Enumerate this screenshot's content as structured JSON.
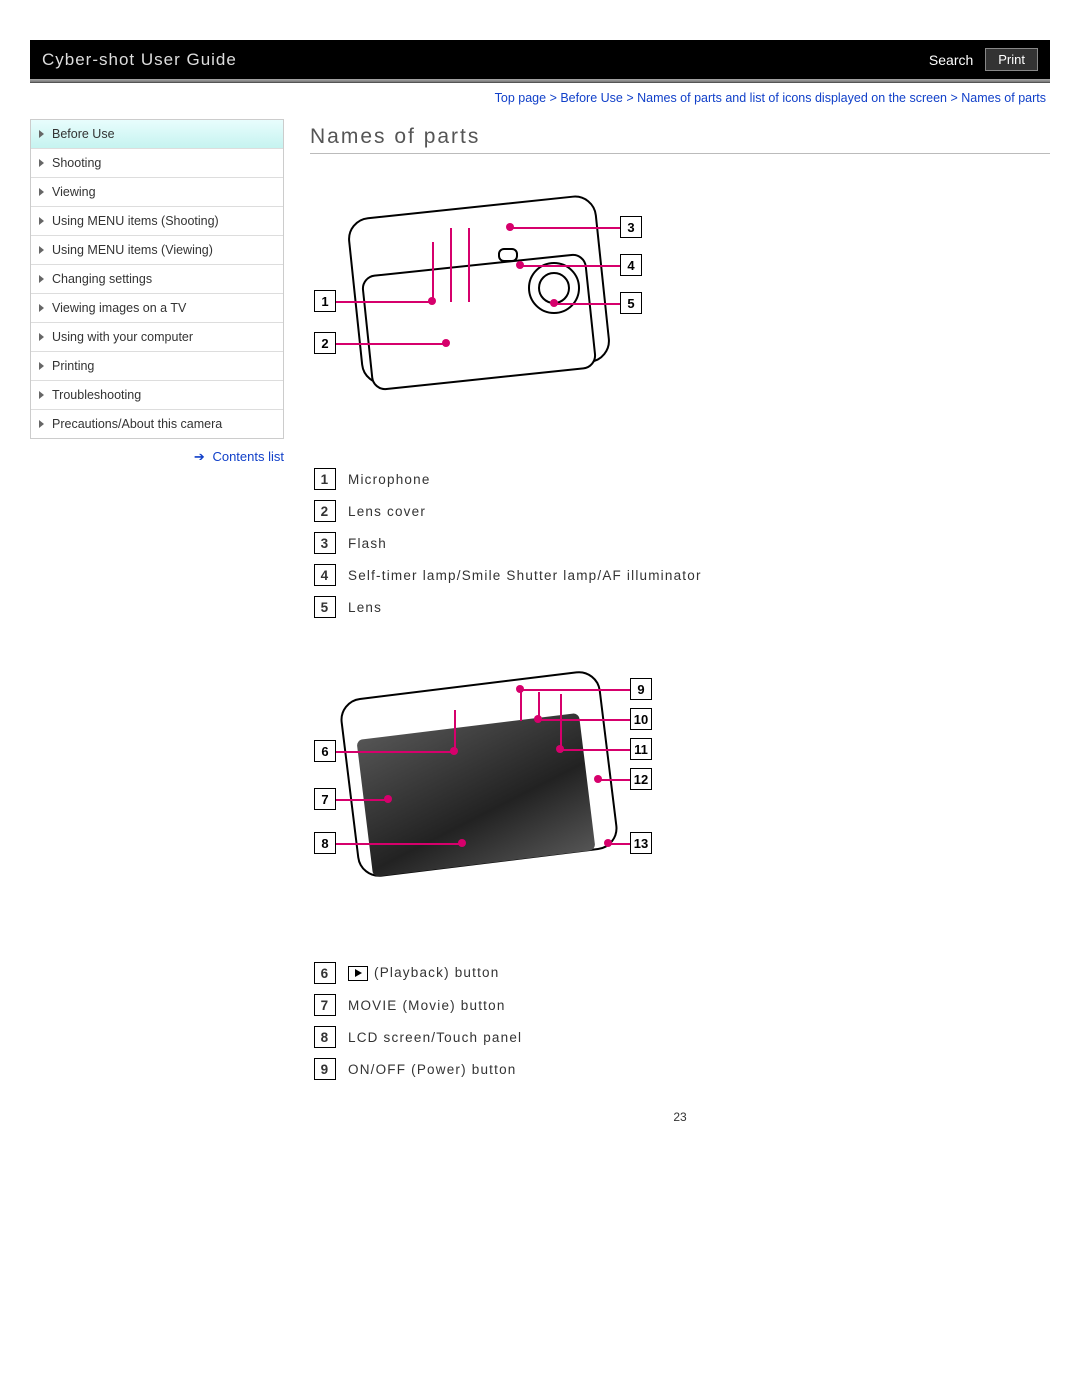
{
  "header": {
    "title": "Cyber-shot User Guide",
    "search_label": "Search",
    "print_label": "Print"
  },
  "breadcrumb": "Top page > Before Use > Names of parts and list of icons displayed on the screen > Names of parts",
  "sidebar": {
    "items": [
      {
        "label": "Before Use",
        "active": true
      },
      {
        "label": "Shooting",
        "active": false
      },
      {
        "label": "Viewing",
        "active": false
      },
      {
        "label": "Using MENU items (Shooting)",
        "active": false
      },
      {
        "label": "Using MENU items (Viewing)",
        "active": false
      },
      {
        "label": "Changing settings",
        "active": false
      },
      {
        "label": "Viewing images on a TV",
        "active": false
      },
      {
        "label": "Using with your computer",
        "active": false
      },
      {
        "label": "Printing",
        "active": false
      },
      {
        "label": "Troubleshooting",
        "active": false
      },
      {
        "label": "Precautions/About this camera",
        "active": false
      }
    ],
    "contents_link": "Contents list"
  },
  "page_title": "Names of parts",
  "front_parts": [
    {
      "n": "1",
      "label": "Microphone"
    },
    {
      "n": "2",
      "label": "Lens cover"
    },
    {
      "n": "3",
      "label": "Flash"
    },
    {
      "n": "4",
      "label": "Self-timer lamp/Smile Shutter lamp/AF illuminator"
    },
    {
      "n": "5",
      "label": "Lens"
    }
  ],
  "back_parts": [
    {
      "n": "6",
      "label": "(Playback) button",
      "icon": "playback"
    },
    {
      "n": "7",
      "label": "MOVIE (Movie) button"
    },
    {
      "n": "8",
      "label": "LCD screen/Touch panel"
    },
    {
      "n": "9",
      "label": "ON/OFF (Power) button"
    }
  ],
  "back_callouts_right": [
    "9",
    "10",
    "11",
    "12",
    "13"
  ],
  "back_callouts_left": [
    "6",
    "7",
    "8"
  ],
  "front_callouts_left": [
    "1",
    "2"
  ],
  "front_callouts_right": [
    "3",
    "4",
    "5"
  ],
  "page_number": "23",
  "colors": {
    "accent": "#d6006c",
    "link": "#1140c9",
    "sidebar_active_bg": "#d3f6f2"
  }
}
